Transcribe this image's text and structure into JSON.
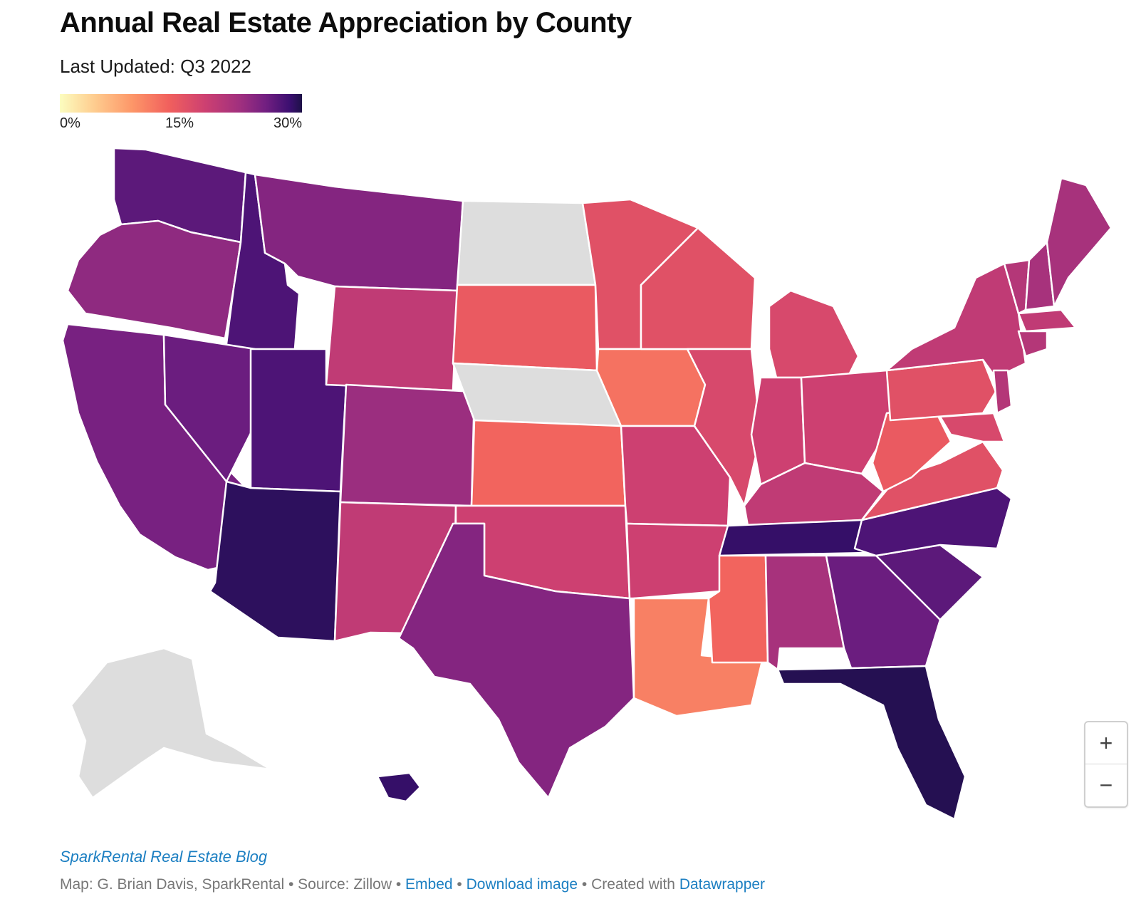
{
  "header": {
    "title": "Annual Real Estate Appreciation by County",
    "subtitle": "Last Updated: Q3 2022"
  },
  "legend": {
    "labels": [
      "0%",
      "15%",
      "30%"
    ],
    "scale_colors": [
      "#fcfdbf",
      "#feca8d",
      "#fd9668",
      "#f1605d",
      "#cd4071",
      "#9e2f7f",
      "#721f81",
      "#3b0f70",
      "#1d1147"
    ],
    "no_data_color": "#dddddd"
  },
  "map": {
    "border_color": "#ffffff",
    "regions": [
      {
        "name": "Washington",
        "value": 24
      },
      {
        "name": "Oregon",
        "value": 20
      },
      {
        "name": "California",
        "value": 22
      },
      {
        "name": "Idaho",
        "value": 25
      },
      {
        "name": "Montana",
        "value": 21
      },
      {
        "name": "Nevada",
        "value": 23
      },
      {
        "name": "Utah",
        "value": 25
      },
      {
        "name": "Arizona",
        "value": 28
      },
      {
        "name": "Wyoming",
        "value": 16
      },
      {
        "name": "Colorado",
        "value": 19
      },
      {
        "name": "New Mexico",
        "value": 16
      },
      {
        "name": "North Dakota",
        "value": null
      },
      {
        "name": "South Dakota",
        "value": 12
      },
      {
        "name": "Nebraska",
        "value": null
      },
      {
        "name": "Kansas",
        "value": 11
      },
      {
        "name": "Oklahoma",
        "value": 15
      },
      {
        "name": "Texas",
        "value": 21
      },
      {
        "name": "Minnesota",
        "value": 13
      },
      {
        "name": "Iowa",
        "value": 10
      },
      {
        "name": "Missouri",
        "value": 15
      },
      {
        "name": "Arkansas",
        "value": 15
      },
      {
        "name": "Louisiana",
        "value": 9
      },
      {
        "name": "Wisconsin",
        "value": 13
      },
      {
        "name": "Illinois",
        "value": 14
      },
      {
        "name": "Michigan",
        "value": 14
      },
      {
        "name": "Indiana",
        "value": 15
      },
      {
        "name": "Ohio",
        "value": 15
      },
      {
        "name": "Kentucky",
        "value": 16
      },
      {
        "name": "Tennessee",
        "value": 27
      },
      {
        "name": "Mississippi",
        "value": 11
      },
      {
        "name": "Alabama",
        "value": 18
      },
      {
        "name": "Georgia",
        "value": 23
      },
      {
        "name": "Florida",
        "value": 29
      },
      {
        "name": "South Carolina",
        "value": 24
      },
      {
        "name": "North Carolina",
        "value": 25
      },
      {
        "name": "Virginia",
        "value": 13
      },
      {
        "name": "West Virginia",
        "value": 12
      },
      {
        "name": "Pennsylvania",
        "value": 13
      },
      {
        "name": "New York",
        "value": 16
      },
      {
        "name": "Vermont",
        "value": 17
      },
      {
        "name": "New Hampshire",
        "value": 18
      },
      {
        "name": "Maine",
        "value": 18
      },
      {
        "name": "Massachusetts",
        "value": 16
      },
      {
        "name": "Connecticut",
        "value": 17
      },
      {
        "name": "New Jersey",
        "value": 17
      },
      {
        "name": "Maryland",
        "value": 14
      },
      {
        "name": "Alaska",
        "value": null
      },
      {
        "name": "Hawaii",
        "value": 27
      }
    ]
  },
  "zoom": {
    "in_label": "+",
    "out_label": "−"
  },
  "footer": {
    "source_title": "SparkRental Real Estate Blog",
    "credit_text": "Map: G. Brian Davis, SparkRental • Source: Zillow • ",
    "embed_label": "Embed",
    "sep1": " • ",
    "download_label": "Download image",
    "created_text": " • Created with ",
    "tool_label": "Datawrapper"
  }
}
